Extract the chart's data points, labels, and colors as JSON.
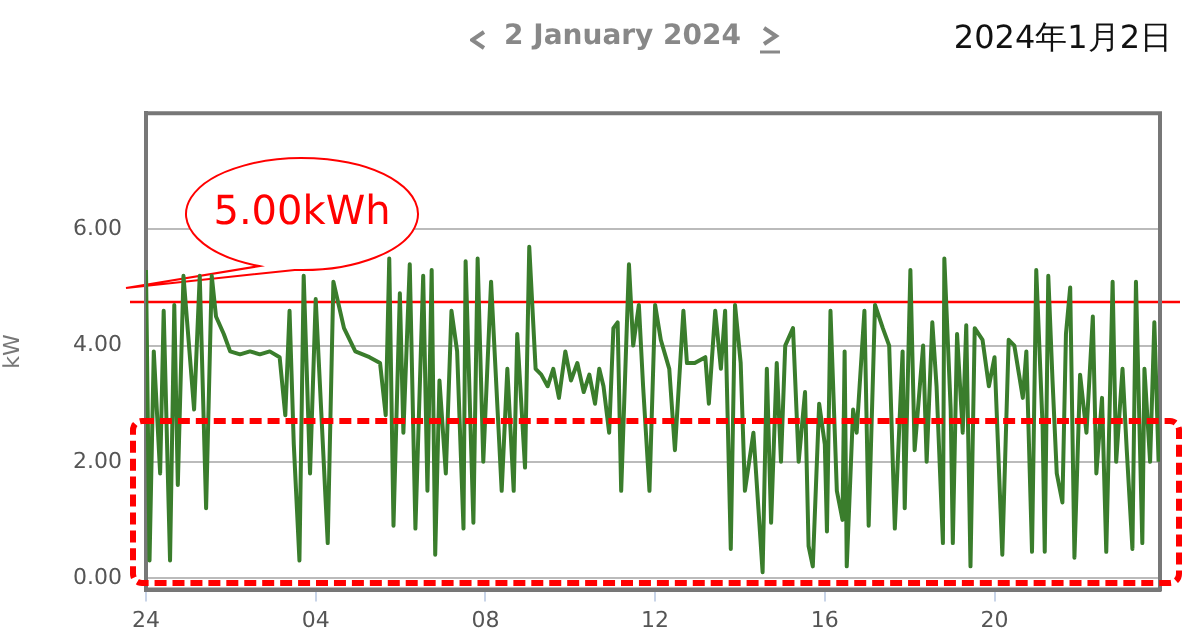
{
  "chart_data": {
    "type": "line",
    "title": "2 January 2024",
    "subtitle": "2024年1月2日",
    "ylabel": "kW",
    "x": [
      "2024-01-02T00:00",
      "2024-01-02T00:05",
      "2024-01-02T00:11",
      "2024-01-02T00:20",
      "2024-01-02T00:25",
      "2024-01-02T00:34",
      "2024-01-02T00:40",
      "2024-01-02T00:45",
      "2024-01-02T00:53",
      "2024-01-02T01:08",
      "2024-01-02T01:16",
      "2024-01-02T01:25",
      "2024-01-02T01:33",
      "2024-01-02T01:39",
      "2024-01-02T01:50",
      "2024-01-02T01:59",
      "2024-01-02T02:13",
      "2024-01-02T02:27",
      "2024-01-02T02:41",
      "2024-01-02T02:55",
      "2024-01-02T03:09",
      "2024-01-02T03:17",
      "2024-01-02T03:23",
      "2024-01-02T03:29",
      "2024-01-02T03:37",
      "2024-01-02T03:43",
      "2024-01-02T03:52",
      "2024-01-02T04:00",
      "2024-01-02T04:17",
      "2024-01-02T04:25",
      "2024-01-02T04:40",
      "2024-01-02T04:56",
      "2024-01-02T05:16",
      "2024-01-02T05:31",
      "2024-01-02T05:39",
      "2024-01-02T05:44",
      "2024-01-02T05:50",
      "2024-01-02T05:59",
      "2024-01-02T06:04",
      "2024-01-02T06:13",
      "2024-01-02T06:21",
      "2024-01-02T06:32",
      "2024-01-02T06:38",
      "2024-01-02T06:44",
      "2024-01-02T06:49",
      "2024-01-02T06:55",
      "2024-01-02T07:04",
      "2024-01-02T07:12",
      "2024-01-02T07:20",
      "2024-01-02T07:29",
      "2024-01-02T07:32",
      "2024-01-02T07:43",
      "2024-01-02T07:49",
      "2024-01-02T07:57",
      "2024-01-02T08:08",
      "2024-01-02T08:23",
      "2024-01-02T08:31",
      "2024-01-02T08:40",
      "2024-01-02T08:45",
      "2024-01-02T08:56",
      "2024-01-02T09:02",
      "2024-01-02T09:11",
      "2024-01-02T09:19",
      "2024-01-02T09:28",
      "2024-01-02T09:36",
      "2024-01-02T09:44",
      "2024-01-02T09:53",
      "2024-01-02T10:01",
      "2024-01-02T10:10",
      "2024-01-02T10:19",
      "2024-01-02T10:27",
      "2024-01-02T10:35",
      "2024-01-02T10:41",
      "2024-01-02T10:47",
      "2024-01-02T10:55",
      "2024-01-02T11:01",
      "2024-01-02T11:07",
      "2024-01-02T11:12",
      "2024-01-02T11:23",
      "2024-01-02T11:29",
      "2024-01-02T11:37",
      "2024-01-02T11:43",
      "2024-01-02T11:52",
      "2024-01-02T12:00",
      "2024-01-02T12:08",
      "2024-01-02T12:20",
      "2024-01-02T12:28",
      "2024-01-02T12:40",
      "2024-01-02T12:45",
      "2024-01-02T12:56",
      "2024-01-02T13:11",
      "2024-01-02T13:16",
      "2024-01-02T13:25",
      "2024-01-02T13:33",
      "2024-01-02T13:39",
      "2024-01-02T13:47",
      "2024-01-02T13:53",
      "2024-01-02T14:01",
      "2024-01-02T14:07",
      "2024-01-02T14:19",
      "2024-01-02T14:32",
      "2024-01-02T14:38",
      "2024-01-02T14:44",
      "2024-01-02T14:52",
      "2024-01-02T14:58",
      "2024-01-02T15:04",
      "2024-01-02T15:15",
      "2024-01-02T15:23",
      "2024-01-02T15:32",
      "2024-01-02T15:37",
      "2024-01-02T15:43",
      "2024-01-02T15:52",
      "2024-01-02T16:00",
      "2024-01-02T16:03",
      "2024-01-02T16:08",
      "2024-01-02T16:17",
      "2024-01-02T16:25",
      "2024-01-02T16:28",
      "2024-01-02T16:31",
      "2024-01-02T16:40",
      "2024-01-02T16:45",
      "2024-01-02T16:56",
      "2024-01-02T17:02",
      "2024-01-02T17:11",
      "2024-01-02T17:22",
      "2024-01-02T17:31",
      "2024-01-02T17:39",
      "2024-01-02T17:50",
      "2024-01-02T17:53",
      "2024-01-02T18:01",
      "2024-01-02T18:07",
      "2024-01-02T18:19",
      "2024-01-02T18:24",
      "2024-01-02T18:32",
      "2024-01-02T18:38",
      "2024-01-02T18:47",
      "2024-01-02T18:49",
      "2024-01-02T18:58",
      "2024-01-02T19:01",
      "2024-01-02T19:07",
      "2024-01-02T19:15",
      "2024-01-02T19:20",
      "2024-01-02T19:26",
      "2024-01-02T19:32",
      "2024-01-02T19:43",
      "2024-01-02T19:52",
      "2024-01-02T20:00",
      "2024-01-02T20:11",
      "2024-01-02T20:20",
      "2024-01-02T20:28",
      "2024-01-02T20:40",
      "2024-01-02T20:45",
      "2024-01-02T20:53",
      "2024-01-02T20:59",
      "2024-01-02T21:08",
      "2024-01-02T21:11",
      "2024-01-02T21:16",
      "2024-01-02T21:22",
      "2024-01-02T21:28",
      "2024-01-02T21:36",
      "2024-01-02T21:41",
      "2024-01-02T21:47",
      "2024-01-02T21:53",
      "2024-01-02T22:01",
      "2024-01-02T22:10",
      "2024-01-02T22:19",
      "2024-01-02T22:24",
      "2024-01-02T22:32",
      "2024-01-02T22:38",
      "2024-01-02T22:47",
      "2024-01-02T22:52",
      "2024-01-02T23:01",
      "2024-01-02T23:07",
      "2024-01-02T23:15",
      "2024-01-02T23:20",
      "2024-01-02T23:29",
      "2024-01-02T23:32",
      "2024-01-02T23:40",
      "2024-01-02T23:46",
      "2024-01-02T23:52"
    ],
    "series": [
      {
        "color": "#3a7d2c",
        "values": [
          5.3,
          0.3,
          3.9,
          1.8,
          4.6,
          0.3,
          4.7,
          1.6,
          5.2,
          2.9,
          5.2,
          1.2,
          5.2,
          4.5,
          4.2,
          3.9,
          3.85,
          3.9,
          3.85,
          3.9,
          3.8,
          2.8,
          4.6,
          2.3,
          0.3,
          5.2,
          1.8,
          4.8,
          0.6,
          5.1,
          4.3,
          3.9,
          3.8,
          3.7,
          2.8,
          5.5,
          0.9,
          4.9,
          2.5,
          5.4,
          0.85,
          5.2,
          1.5,
          5.3,
          0.4,
          3.4,
          1.8,
          4.6,
          3.9,
          0.85,
          5.45,
          0.95,
          5.5,
          2.0,
          5.1,
          1.5,
          3.6,
          1.5,
          4.2,
          1.9,
          5.7,
          3.6,
          3.5,
          3.3,
          3.6,
          3.1,
          3.9,
          3.4,
          3.7,
          3.2,
          3.5,
          3.0,
          3.6,
          3.3,
          2.5,
          4.3,
          4.4,
          1.5,
          5.4,
          4.0,
          4.7,
          3.3,
          1.5,
          4.7,
          4.1,
          3.6,
          2.2,
          4.6,
          3.7,
          3.7,
          3.8,
          3.0,
          4.6,
          3.6,
          4.6,
          0.5,
          4.7,
          3.7,
          1.5,
          2.5,
          0.1,
          3.6,
          0.95,
          3.7,
          2.0,
          4.0,
          4.3,
          2.0,
          3.2,
          0.55,
          0.2,
          3.0,
          2.3,
          0.8,
          4.6,
          1.5,
          1.0,
          3.9,
          0.2,
          2.9,
          2.5,
          4.6,
          0.9,
          4.7,
          4.3,
          4.0,
          0.85,
          3.9,
          1.2,
          5.3,
          2.2,
          4.0,
          2.0,
          4.4,
          3.3,
          0.6,
          5.5,
          2.9,
          0.6,
          4.2,
          2.5,
          4.35,
          0.2,
          4.3,
          4.1,
          3.3,
          3.8,
          0.4,
          4.1,
          4.0,
          3.1,
          3.9,
          0.45,
          5.3,
          2.6,
          0.45,
          5.2,
          3.4,
          1.8,
          1.3,
          4.2,
          5.0,
          0.35,
          3.5,
          2.5,
          4.5,
          1.8,
          3.1,
          0.45,
          5.1,
          2.0,
          3.6,
          2.2,
          0.5,
          5.1,
          0.6,
          3.6,
          2.0,
          4.4,
          2.0
        ]
      }
    ],
    "xlim": [
      "2024-01-02T00:00",
      "2024-01-02T23:54"
    ],
    "xticks": [
      {
        "value": "2024-01-02T00:00",
        "label": "24"
      },
      {
        "value": "2024-01-02T04:00",
        "label": "04"
      },
      {
        "value": "2024-01-02T08:00",
        "label": "08"
      },
      {
        "value": "2024-01-02T12:00",
        "label": "12"
      },
      {
        "value": "2024-01-02T16:00",
        "label": "16"
      },
      {
        "value": "2024-01-02T20:00",
        "label": "20"
      }
    ],
    "ylim": [
      -0.2,
      8
    ],
    "yticks": [
      {
        "value": 0,
        "label": "0.00"
      },
      {
        "value": 2,
        "label": "2.00"
      },
      {
        "value": 4,
        "label": "4.00"
      },
      {
        "value": 6,
        "label": "6.00"
      }
    ],
    "ref_lines": [
      {
        "axis": "y",
        "value": 4.75,
        "label": "5.00kWh",
        "color": "#ff0000",
        "line_style": "solid"
      }
    ],
    "grid": "y",
    "legend": false,
    "marker": "none",
    "line_style": "solid"
  }
}
